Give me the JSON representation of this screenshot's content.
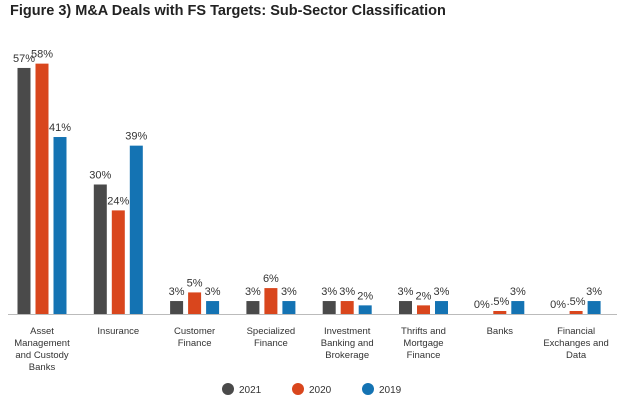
{
  "chart_data": {
    "type": "bar",
    "title": "Figure 3) M&A Deals with FS Targets: Sub-Sector Classification",
    "xlabel": "",
    "ylabel": "",
    "ylim": [
      0,
      60
    ],
    "grid": false,
    "legend_position": "bottom",
    "categories": [
      [
        "Asset",
        "Management",
        "and Custody",
        "Banks"
      ],
      [
        "Insurance"
      ],
      [
        "Customer",
        "Finance"
      ],
      [
        "Specialized",
        "Finance"
      ],
      [
        "Investment",
        "Banking and",
        "Brokerage"
      ],
      [
        "Thrifts and",
        "Mortgage",
        "Finance"
      ],
      [
        "Banks"
      ],
      [
        "Financial",
        "Exchanges and",
        "Data"
      ]
    ],
    "series": [
      {
        "name": "2021",
        "color": "#4a4a4a",
        "values": [
          57,
          30,
          3,
          3,
          3,
          3,
          0,
          0
        ],
        "labels": [
          "57%",
          "30%",
          "3%",
          "3%",
          "3%",
          "3%",
          "0%",
          "0%"
        ]
      },
      {
        "name": "2020",
        "color": "#d9461d",
        "values": [
          58,
          24,
          5,
          6,
          3,
          2,
          0.5,
          0.5
        ],
        "labels": [
          "58%",
          "24%",
          "5%",
          "6%",
          "3%",
          "2%",
          ".5%",
          ".5%"
        ]
      },
      {
        "name": "2019",
        "color": "#1473b3",
        "values": [
          41,
          39,
          3,
          3,
          2,
          3,
          3,
          3
        ],
        "labels": [
          "41%",
          "39%",
          "3%",
          "3%",
          "2%",
          "3%",
          "3%",
          "3%"
        ]
      }
    ]
  }
}
